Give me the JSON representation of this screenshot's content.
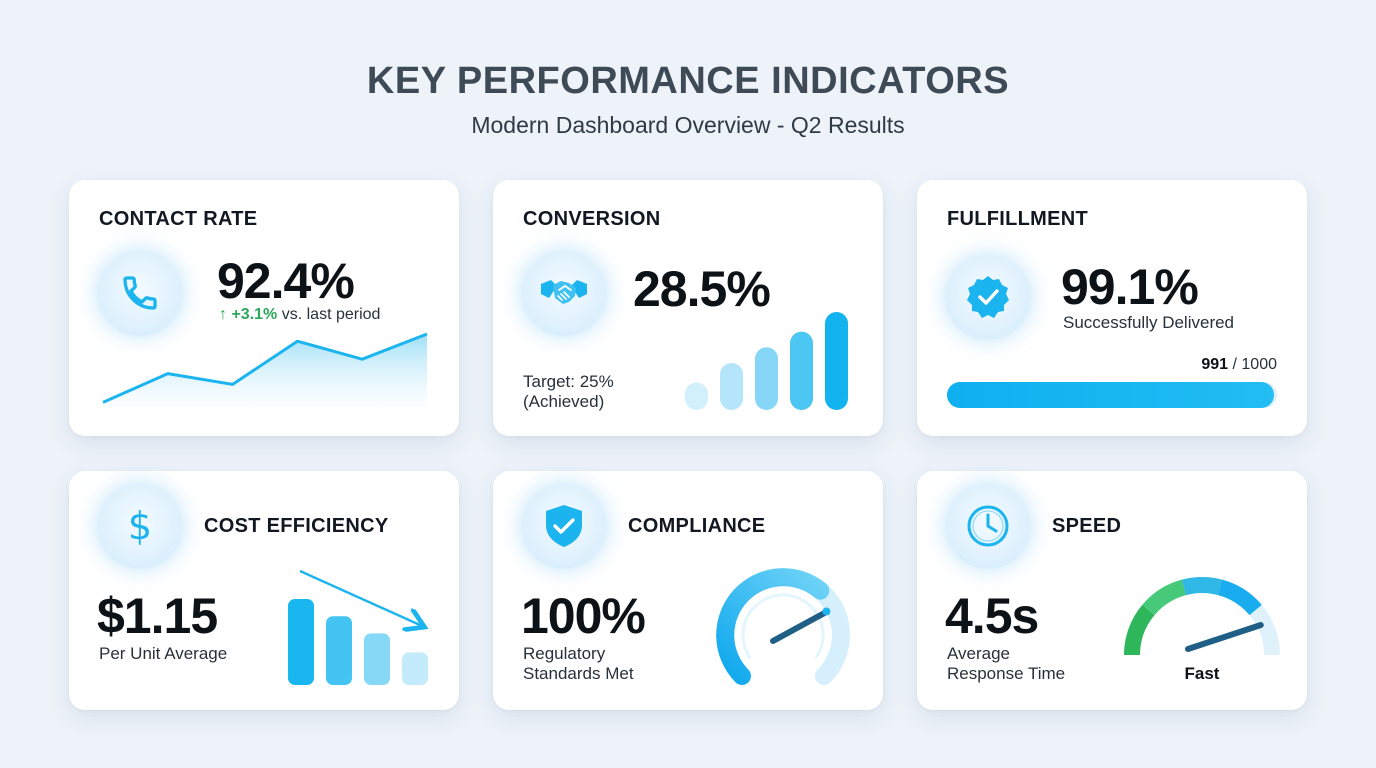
{
  "header": {
    "title": "KEY PERFORMANCE INDICATORS",
    "subtitle": "Modern Dashboard Overview - Q2 Results"
  },
  "colors": {
    "accent": "#1cb4ef",
    "accent_light": "#bfe8fb",
    "positive": "#2ba85a",
    "gauge_green": "#2dbb5d",
    "text_dark": "#121821"
  },
  "cards": {
    "contact_rate": {
      "title": "CONTACT RATE",
      "value": "92.4%",
      "trend_arrow": "↑",
      "trend_delta": "+3.1%",
      "trend_text": "vs. last period",
      "icon": "phone-icon",
      "sparkline": [
        0.05,
        0.45,
        0.3,
        0.9,
        0.65,
        1.0
      ]
    },
    "conversion": {
      "title": "CONVERSION",
      "value": "28.5%",
      "target_line1": "Target: 25%",
      "target_line2": "(Achieved)",
      "icon": "handshake-icon",
      "bars": [
        0.28,
        0.48,
        0.64,
        0.8,
        1.0
      ]
    },
    "fulfillment": {
      "title": "FULFILLMENT",
      "value": "99.1%",
      "caption": "Successfully Delivered",
      "count_done": "991",
      "count_sep": " / ",
      "count_total": "1000",
      "progress": 0.991,
      "icon": "verified-badge-icon"
    },
    "cost_efficiency": {
      "title": "COST EFFICIENCY",
      "value": "$1.15",
      "caption": "Per Unit Average",
      "icon": "dollar-icon",
      "bars": [
        1.0,
        0.8,
        0.6,
        0.38
      ]
    },
    "compliance": {
      "title": "COMPLIANCE",
      "value": "100%",
      "caption_line1": "Regulatory",
      "caption_line2": "Standards Met",
      "icon": "shield-check-icon",
      "gauge_level": 1.0
    },
    "speed": {
      "title": "SPEED",
      "value": "4.5s",
      "caption_line1": "Average",
      "caption_line2": "Response Time",
      "gauge_label": "Fast",
      "icon": "clock-icon",
      "gauge_level": 0.85
    }
  }
}
